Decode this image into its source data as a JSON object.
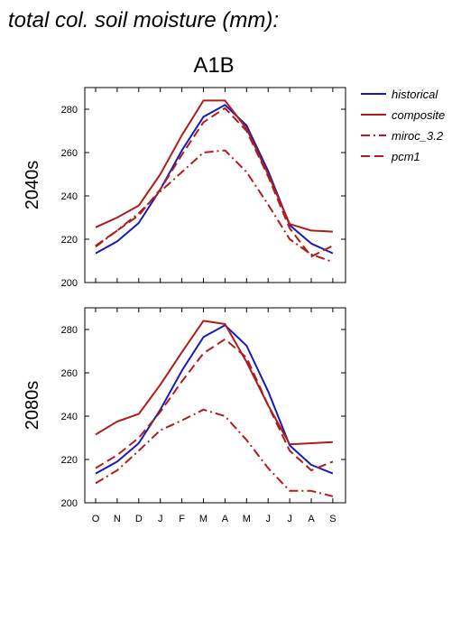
{
  "title": "total col. soil moisture (mm):",
  "scenario": "A1B",
  "colors": {
    "historical": "#1a1ab8",
    "model": "#b01c1c"
  },
  "legend": [
    {
      "key": "historical",
      "label": "historical",
      "dash": "solid"
    },
    {
      "key": "composite",
      "label": "composite",
      "dash": "solid"
    },
    {
      "key": "miroc",
      "label": "miroc_3.2",
      "dash": "dashdot"
    },
    {
      "key": "pcm1",
      "label": "pcm1",
      "dash": "dashed"
    }
  ],
  "chart_data": [
    {
      "type": "line",
      "panel_label": "2040s",
      "categories": [
        "O",
        "N",
        "D",
        "J",
        "F",
        "M",
        "A",
        "M",
        "J",
        "J",
        "A",
        "S"
      ],
      "yticks": [
        200,
        220,
        240,
        260,
        280
      ],
      "ytick_labels": [
        "200",
        "220",
        "240",
        "260",
        "280"
      ],
      "ylim": [
        200,
        290
      ],
      "series": [
        {
          "name": "historical",
          "key": "historical",
          "values": [
            213.5,
            219,
            227.5,
            243,
            261,
            276.5,
            282,
            272.5,
            251.5,
            226.5,
            218,
            213.5
          ]
        },
        {
          "name": "composite",
          "key": "composite",
          "values": [
            225.5,
            230,
            235.5,
            250,
            268,
            284,
            284,
            271,
            250,
            227,
            224,
            223.5
          ]
        },
        {
          "name": "miroc_3.2",
          "key": "miroc",
          "values": [
            216.5,
            224,
            232,
            242,
            251,
            260,
            261,
            251,
            236,
            220,
            213,
            209.5
          ]
        },
        {
          "name": "pcm1",
          "key": "pcm1",
          "values": [
            217,
            224,
            231,
            243,
            259,
            274,
            280.5,
            270,
            249,
            225,
            212,
            217
          ]
        }
      ]
    },
    {
      "type": "line",
      "panel_label": "2080s",
      "categories": [
        "O",
        "N",
        "D",
        "J",
        "F",
        "M",
        "A",
        "M",
        "J",
        "J",
        "A",
        "S"
      ],
      "xtick_labels": [
        "O",
        "N",
        "D",
        "J",
        "F",
        "M",
        "A",
        "M",
        "J",
        "J",
        "A",
        "S"
      ],
      "yticks": [
        200,
        220,
        240,
        260,
        280
      ],
      "ytick_labels": [
        "200",
        "220",
        "240",
        "260",
        "280"
      ],
      "ylim": [
        200,
        290
      ],
      "series": [
        {
          "name": "historical",
          "key": "historical",
          "values": [
            213.5,
            219,
            227.5,
            243,
            261,
            276.5,
            282,
            272.5,
            251.5,
            226.5,
            217.5,
            213.5
          ]
        },
        {
          "name": "composite",
          "key": "composite",
          "values": [
            231.5,
            237.5,
            241,
            254.5,
            269.5,
            284,
            282.5,
            265,
            245,
            227,
            227.5,
            228
          ]
        },
        {
          "name": "miroc_3.2",
          "key": "miroc",
          "values": [
            209,
            215,
            224,
            233.5,
            238,
            243,
            240,
            229,
            216,
            205.5,
            205.5,
            203
          ]
        },
        {
          "name": "pcm1",
          "key": "pcm1",
          "values": [
            216,
            222,
            230,
            242,
            256,
            269,
            275.5,
            267,
            245,
            224,
            215,
            219
          ]
        }
      ]
    }
  ]
}
